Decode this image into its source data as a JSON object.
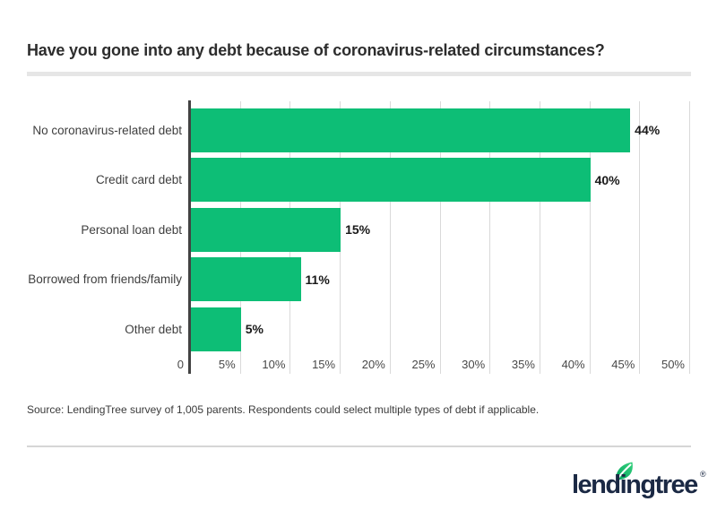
{
  "title": "Have you gone into any debt because of coronavirus-related circumstances?",
  "source": "Source: LendingTree survey of 1,005 parents. Respondents could select multiple types of debt if applicable.",
  "logo": {
    "text": "lendingtree",
    "registered": "®"
  },
  "colors": {
    "bar_green": "#0dbe76",
    "logo_navy": "#1b2944",
    "leaf_green_dark": "#00a55e",
    "leaf_green_light": "#38d17e",
    "axis": "#424242",
    "gridline": "#d9d9d9",
    "divider": "#e6e6e6"
  },
  "chart_data": {
    "type": "bar",
    "orientation": "horizontal",
    "title": "Have you gone into any debt because of coronavirus-related circumstances?",
    "categories": [
      "No coronavirus-related debt",
      "Credit card debt",
      "Personal loan debt",
      "Borrowed from friends/family",
      "Other debt"
    ],
    "values": [
      44,
      40,
      15,
      11,
      5
    ],
    "value_labels": [
      "44%",
      "40%",
      "15%",
      "11%",
      "5%"
    ],
    "x_ticks": [
      "0",
      "5%",
      "10%",
      "15%",
      "20%",
      "25%",
      "30%",
      "35%",
      "40%",
      "45%",
      "50%"
    ],
    "x_tick_values": [
      0,
      5,
      10,
      15,
      20,
      25,
      30,
      35,
      40,
      45,
      50
    ],
    "xlim": [
      0,
      50
    ],
    "xlabel": "",
    "ylabel": "",
    "grid": "vertical-only",
    "legend": "none",
    "bar_color": "#0dbe76"
  }
}
